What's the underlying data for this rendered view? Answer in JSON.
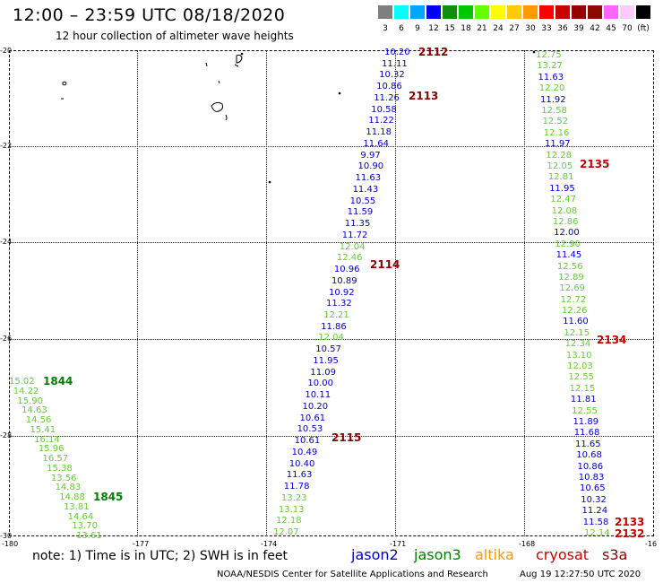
{
  "header": {
    "title": "12:00 – 23:59 UTC 08/18/2020",
    "subtitle": "12 hour collection of altimeter wave heights"
  },
  "color_scale": {
    "labels": [
      "3",
      "6",
      "9",
      "12",
      "15",
      "18",
      "21",
      "24",
      "27",
      "30",
      "33",
      "36",
      "39",
      "42",
      "45",
      "70",
      "(ft)"
    ],
    "colors": [
      "#7f7f7f",
      "#00ffff",
      "#00a6ff",
      "#0000ff",
      "#0d8f0d",
      "#00c800",
      "#66ff00",
      "#ffff00",
      "#ffcc00",
      "#ff9900",
      "#ff0000",
      "#c80000",
      "#990000",
      "#8c0a00",
      "#ff66ff",
      "#ffccff",
      "#000000"
    ]
  },
  "axes": {
    "lat_labels": [
      "-20",
      "-22",
      "-24",
      "-26",
      "-28",
      "-30"
    ],
    "lon_labels": [
      "-180",
      "-177",
      "-174",
      "-171",
      "-168",
      "-16"
    ]
  },
  "satellite_colors": {
    "jason2": "#0000cc",
    "jason3": "#008000",
    "jason3_light": "#66cc33",
    "altika": "#ff9900",
    "cryosat": "#cc0000",
    "s3a": "#8b0000"
  },
  "tracks": [
    {
      "id": "left",
      "values": [
        {
          "v": "15.02",
          "c": "jason3_light"
        },
        {
          "v": "14.22",
          "c": "jason3_light"
        },
        {
          "v": "15.90",
          "c": "jason3_light"
        },
        {
          "v": "14.63",
          "c": "jason3_light"
        },
        {
          "v": "14.56",
          "c": "jason3_light"
        },
        {
          "v": "15.41",
          "c": "jason3_light"
        },
        {
          "v": "16.14",
          "c": "jason3_light"
        },
        {
          "v": "15.96",
          "c": "jason3_light"
        },
        {
          "v": "16.57",
          "c": "jason3_light"
        },
        {
          "v": "15.38",
          "c": "jason3_light"
        },
        {
          "v": "13.56",
          "c": "jason3_light"
        },
        {
          "v": "14.83",
          "c": "jason3_light"
        },
        {
          "v": "14.88",
          "c": "jason3_light"
        },
        {
          "v": "13.81",
          "c": "jason3_light"
        },
        {
          "v": "14.64",
          "c": "jason3_light"
        },
        {
          "v": "13.70",
          "c": "jason3_light"
        },
        {
          "v": "13.61",
          "c": "jason3_light"
        }
      ]
    },
    {
      "id": "middle",
      "values": [
        {
          "v": "10.20",
          "c": "jason2"
        },
        {
          "v": "11.11",
          "c": "jason2"
        },
        {
          "v": "10.32",
          "c": "jason2"
        },
        {
          "v": "10.86",
          "c": "jason2"
        },
        {
          "v": "11.26",
          "c": "jason2"
        },
        {
          "v": "10.58",
          "c": "jason2"
        },
        {
          "v": "11.22",
          "c": "jason2"
        },
        {
          "v": "11.18",
          "c": "jason2"
        },
        {
          "v": "11.64",
          "c": "jason2"
        },
        {
          "v": "9.97",
          "c": "jason2"
        },
        {
          "v": "10.90",
          "c": "jason2"
        },
        {
          "v": "11.63",
          "c": "jason2"
        },
        {
          "v": "11.43",
          "c": "jason2"
        },
        {
          "v": "10.55",
          "c": "jason2"
        },
        {
          "v": "11.59",
          "c": "jason2"
        },
        {
          "v": "11.35",
          "c": "jason2"
        },
        {
          "v": "11.72",
          "c": "jason2"
        },
        {
          "v": "12.04",
          "c": "jason3_light"
        },
        {
          "v": "12.46",
          "c": "jason3_light"
        },
        {
          "v": "10.96",
          "c": "jason2"
        },
        {
          "v": "10.89",
          "c": "jason2"
        },
        {
          "v": "10.92",
          "c": "jason2"
        },
        {
          "v": "11.32",
          "c": "jason2"
        },
        {
          "v": "12.21",
          "c": "jason3_light"
        },
        {
          "v": "11.86",
          "c": "jason2"
        },
        {
          "v": "12.04",
          "c": "jason3_light"
        },
        {
          "v": "10.57",
          "c": "jason2"
        },
        {
          "v": "11.95",
          "c": "jason2"
        },
        {
          "v": "11.09",
          "c": "jason2"
        },
        {
          "v": "10.00",
          "c": "jason2"
        },
        {
          "v": "10.11",
          "c": "jason2"
        },
        {
          "v": "10.20",
          "c": "jason2"
        },
        {
          "v": "10.61",
          "c": "jason2"
        },
        {
          "v": "10.53",
          "c": "jason2"
        },
        {
          "v": "10.61",
          "c": "jason2"
        },
        {
          "v": "10.49",
          "c": "jason2"
        },
        {
          "v": "10.40",
          "c": "jason2"
        },
        {
          "v": "11.63",
          "c": "jason2"
        },
        {
          "v": "11.78",
          "c": "jason2"
        },
        {
          "v": "13.23",
          "c": "jason3_light"
        },
        {
          "v": "13.13",
          "c": "jason3_light"
        },
        {
          "v": "12.18",
          "c": "jason3_light"
        },
        {
          "v": "12.07",
          "c": "jason3_light"
        }
      ]
    },
    {
      "id": "right",
      "values": [
        {
          "v": "12.75",
          "c": "jason3_light"
        },
        {
          "v": "13.27",
          "c": "jason3_light"
        },
        {
          "v": "11.63",
          "c": "jason2"
        },
        {
          "v": "12.20",
          "c": "jason3_light"
        },
        {
          "v": "11.92",
          "c": "jason2"
        },
        {
          "v": "12.58",
          "c": "jason3_light"
        },
        {
          "v": "12.52",
          "c": "jason3_light"
        },
        {
          "v": "12.16",
          "c": "jason3_light"
        },
        {
          "v": "11.97",
          "c": "jason2"
        },
        {
          "v": "12.28",
          "c": "jason3_light"
        },
        {
          "v": "12.05",
          "c": "jason3_light"
        },
        {
          "v": "12.81",
          "c": "jason3_light"
        },
        {
          "v": "11.95",
          "c": "jason2"
        },
        {
          "v": "12.47",
          "c": "jason3_light"
        },
        {
          "v": "12.08",
          "c": "jason3_light"
        },
        {
          "v": "12.86",
          "c": "jason3_light"
        },
        {
          "v": "12.00",
          "c": "jason2"
        },
        {
          "v": "12.90",
          "c": "jason3_light"
        },
        {
          "v": "11.45",
          "c": "jason2"
        },
        {
          "v": "12.56",
          "c": "jason3_light"
        },
        {
          "v": "12.89",
          "c": "jason3_light"
        },
        {
          "v": "12.69",
          "c": "jason3_light"
        },
        {
          "v": "12.72",
          "c": "jason3_light"
        },
        {
          "v": "12.26",
          "c": "jason3_light"
        },
        {
          "v": "11.60",
          "c": "jason2"
        },
        {
          "v": "12.15",
          "c": "jason3_light"
        },
        {
          "v": "12.34",
          "c": "jason3_light"
        },
        {
          "v": "13.10",
          "c": "jason3_light"
        },
        {
          "v": "12.03",
          "c": "jason3_light"
        },
        {
          "v": "12.55",
          "c": "jason3_light"
        },
        {
          "v": "12.15",
          "c": "jason3_light"
        },
        {
          "v": "11.81",
          "c": "jason2"
        },
        {
          "v": "12.55",
          "c": "jason3_light"
        },
        {
          "v": "11.89",
          "c": "jason2"
        },
        {
          "v": "11.68",
          "c": "jason2"
        },
        {
          "v": "11.65",
          "c": "jason2"
        },
        {
          "v": "10.68",
          "c": "jason2"
        },
        {
          "v": "10.86",
          "c": "jason2"
        },
        {
          "v": "10.83",
          "c": "jason2"
        },
        {
          "v": "10.65",
          "c": "jason2"
        },
        {
          "v": "10.32",
          "c": "jason2"
        },
        {
          "v": "11.24",
          "c": "jason2"
        },
        {
          "v": "11.58",
          "c": "jason2"
        },
        {
          "v": "12.14",
          "c": "jason3_light"
        }
      ]
    }
  ],
  "time_labels": [
    {
      "text": "1844",
      "c": "jason3"
    },
    {
      "text": "1845",
      "c": "jason3"
    },
    {
      "text": "2112",
      "c": "s3a"
    },
    {
      "text": "2113",
      "c": "s3a"
    },
    {
      "text": "2114",
      "c": "s3a"
    },
    {
      "text": "2115",
      "c": "s3a"
    },
    {
      "text": "2135",
      "c": "cryosat"
    },
    {
      "text": "2134",
      "c": "cryosat"
    },
    {
      "text": "2133",
      "c": "cryosat"
    },
    {
      "text": "2132",
      "c": "cryosat"
    }
  ],
  "footer": {
    "note": "note: 1) Time is in UTC; 2) SWH is in feet",
    "legend": [
      "jason2",
      "jason3",
      "altika",
      "cryosat",
      "s3a"
    ],
    "credit": "NOAA/NESDIS Center for Satellite Applications and Research",
    "timestamp": "Aug 19 12:27:50 UTC 2020"
  }
}
